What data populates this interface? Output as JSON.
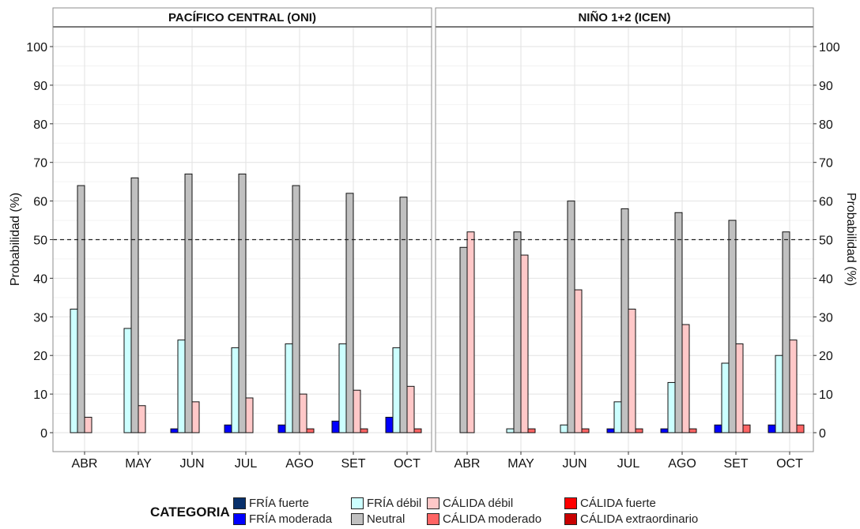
{
  "chart_data": [
    {
      "type": "bar",
      "title": "PACÍFICO CENTRAL (ONI)",
      "ylabel": "Probabilidad (%)",
      "ylim": [
        0,
        100
      ],
      "yticks": [
        0,
        10,
        20,
        30,
        40,
        50,
        60,
        70,
        80,
        90,
        100
      ],
      "reference_line": 50,
      "categories": [
        "ABR",
        "MAY",
        "JUN",
        "JUL",
        "AGO",
        "SET",
        "OCT"
      ],
      "series": [
        {
          "name": "FRÍA fuerte",
          "values": [
            0,
            0,
            0,
            0,
            0,
            0,
            0
          ]
        },
        {
          "name": "FRÍA moderada",
          "values": [
            0,
            0,
            1,
            2,
            2,
            3,
            4
          ]
        },
        {
          "name": "FRÍA débil",
          "values": [
            32,
            27,
            24,
            22,
            23,
            23,
            22
          ]
        },
        {
          "name": "Neutral",
          "values": [
            64,
            66,
            67,
            67,
            64,
            62,
            61
          ]
        },
        {
          "name": "CÁLIDA débil",
          "values": [
            4,
            7,
            8,
            9,
            10,
            11,
            12
          ]
        },
        {
          "name": "CÁLIDA moderado",
          "values": [
            0,
            0,
            0,
            0,
            1,
            1,
            1
          ]
        },
        {
          "name": "CÁLIDA fuerte",
          "values": [
            0,
            0,
            0,
            0,
            0,
            0,
            0
          ]
        },
        {
          "name": "CÁLIDA extraordinario",
          "values": [
            0,
            0,
            0,
            0,
            0,
            0,
            0
          ]
        }
      ]
    },
    {
      "type": "bar",
      "title": "NIÑO 1+2 (ICEN)",
      "ylabel": "Probabilidad (%)",
      "ylim": [
        0,
        100
      ],
      "yticks": [
        0,
        10,
        20,
        30,
        40,
        50,
        60,
        70,
        80,
        90,
        100
      ],
      "reference_line": 50,
      "categories": [
        "ABR",
        "MAY",
        "JUN",
        "JUL",
        "AGO",
        "SET",
        "OCT"
      ],
      "series": [
        {
          "name": "FRÍA fuerte",
          "values": [
            0,
            0,
            0,
            0,
            0,
            0,
            0
          ]
        },
        {
          "name": "FRÍA moderada",
          "values": [
            0,
            0,
            0,
            1,
            1,
            2,
            2
          ]
        },
        {
          "name": "FRÍA débil",
          "values": [
            0,
            1,
            2,
            8,
            13,
            18,
            20
          ]
        },
        {
          "name": "Neutral",
          "values": [
            48,
            52,
            60,
            58,
            57,
            55,
            52
          ]
        },
        {
          "name": "CÁLIDA débil",
          "values": [
            52,
            46,
            37,
            32,
            28,
            23,
            24
          ]
        },
        {
          "name": "CÁLIDA moderado",
          "values": [
            0,
            1,
            1,
            1,
            1,
            2,
            2
          ]
        },
        {
          "name": "CÁLIDA fuerte",
          "values": [
            0,
            0,
            0,
            0,
            0,
            0,
            0
          ]
        },
        {
          "name": "CÁLIDA extraordinario",
          "values": [
            0,
            0,
            0,
            0,
            0,
            0,
            0
          ]
        }
      ]
    }
  ],
  "legend": {
    "title": "CATEGORIA",
    "items": [
      {
        "label": "FRÍA fuerte",
        "color": "#08306b"
      },
      {
        "label": "FRÍA moderada",
        "color": "#0000ff"
      },
      {
        "label": "FRÍA débil",
        "color": "#ccffff"
      },
      {
        "label": "Neutral",
        "color": "#c0c0c0"
      },
      {
        "label": "CÁLIDA débil",
        "color": "#ffc8c8"
      },
      {
        "label": "CÁLIDA moderado",
        "color": "#ff6464"
      },
      {
        "label": "CÁLIDA fuerte",
        "color": "#ff0000"
      },
      {
        "label": "CÁLIDA extraordinario",
        "color": "#c80000"
      }
    ]
  }
}
